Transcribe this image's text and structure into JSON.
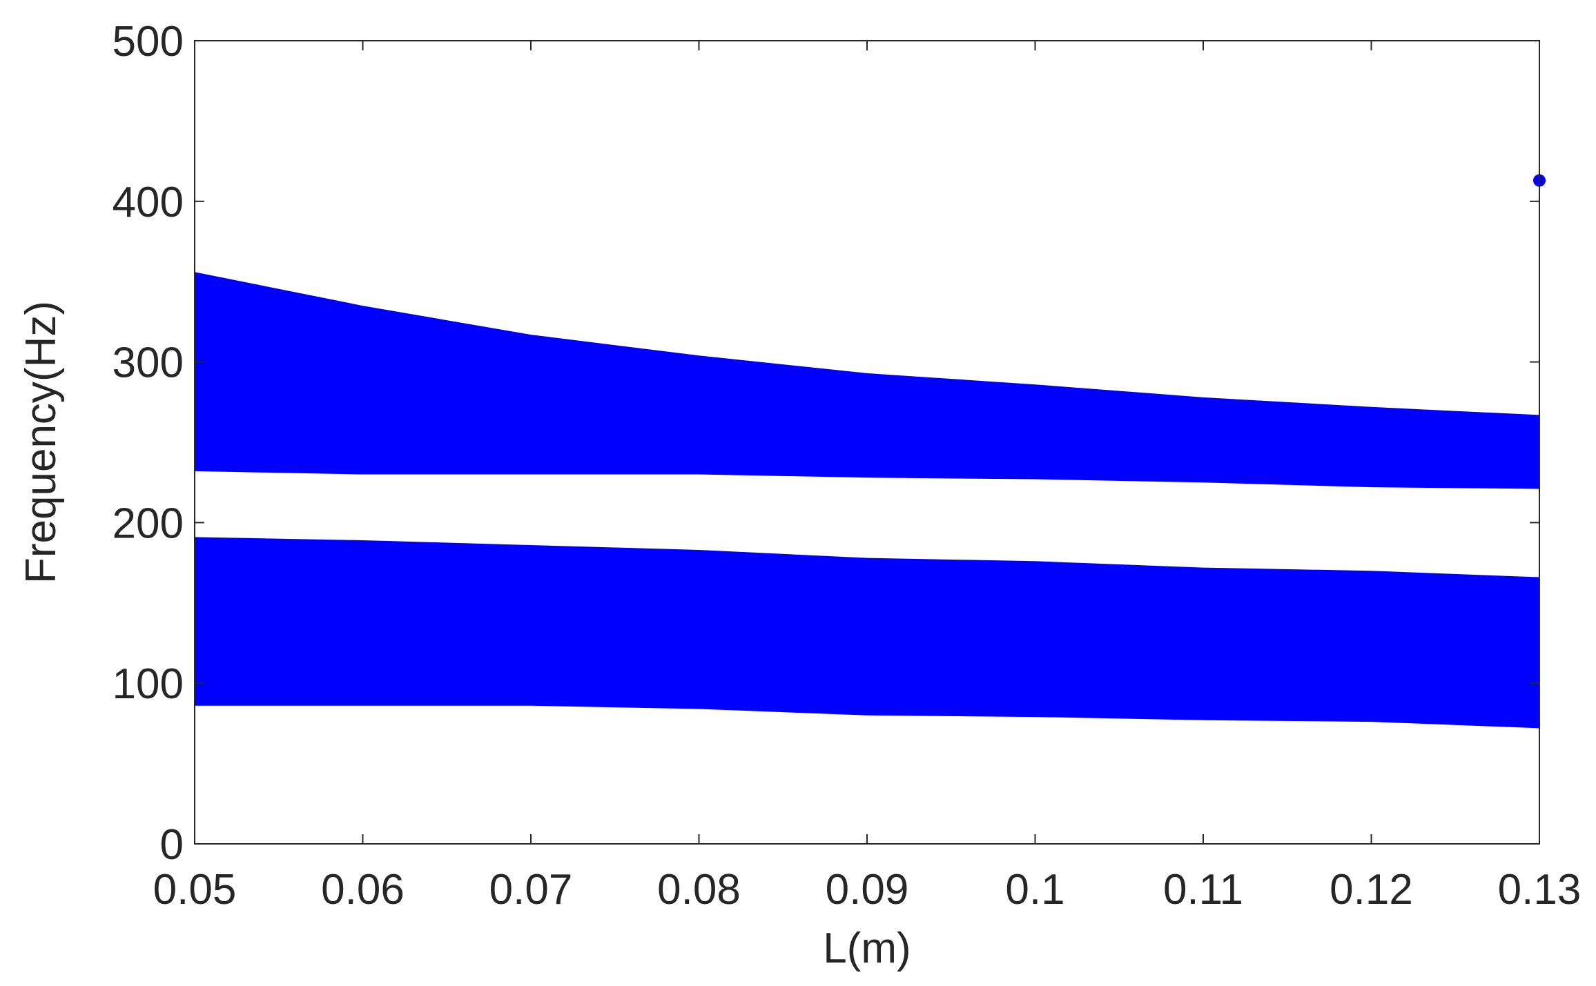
{
  "chart_data": {
    "type": "bandarea",
    "x_label": "L(m)",
    "y_label": "Frequency(Hz)",
    "xlim": [
      0.05,
      0.13
    ],
    "xticks": [
      0.05,
      0.06,
      0.07,
      0.08,
      0.09,
      0.1,
      0.11,
      0.12,
      0.13
    ],
    "ylim": [
      0,
      500
    ],
    "yticks": [
      0,
      100,
      200,
      300,
      400,
      500
    ],
    "color": "#0000ff",
    "x": [
      0.05,
      0.06,
      0.07,
      0.08,
      0.09,
      0.1,
      0.11,
      0.12,
      0.13
    ],
    "bands": [
      {
        "high": [
          356,
          335,
          317,
          304,
          293,
          286,
          278,
          272,
          267
        ],
        "low": [
          232,
          230,
          230,
          230,
          228,
          227,
          225,
          222,
          221
        ]
      },
      {
        "high": [
          191,
          189,
          186,
          183,
          178,
          176,
          172,
          170,
          166
        ],
        "low": [
          86,
          86,
          86,
          84,
          80,
          79,
          77,
          76,
          72
        ]
      }
    ],
    "points": {
      "x": [
        0.13
      ],
      "values": [
        413
      ]
    }
  }
}
